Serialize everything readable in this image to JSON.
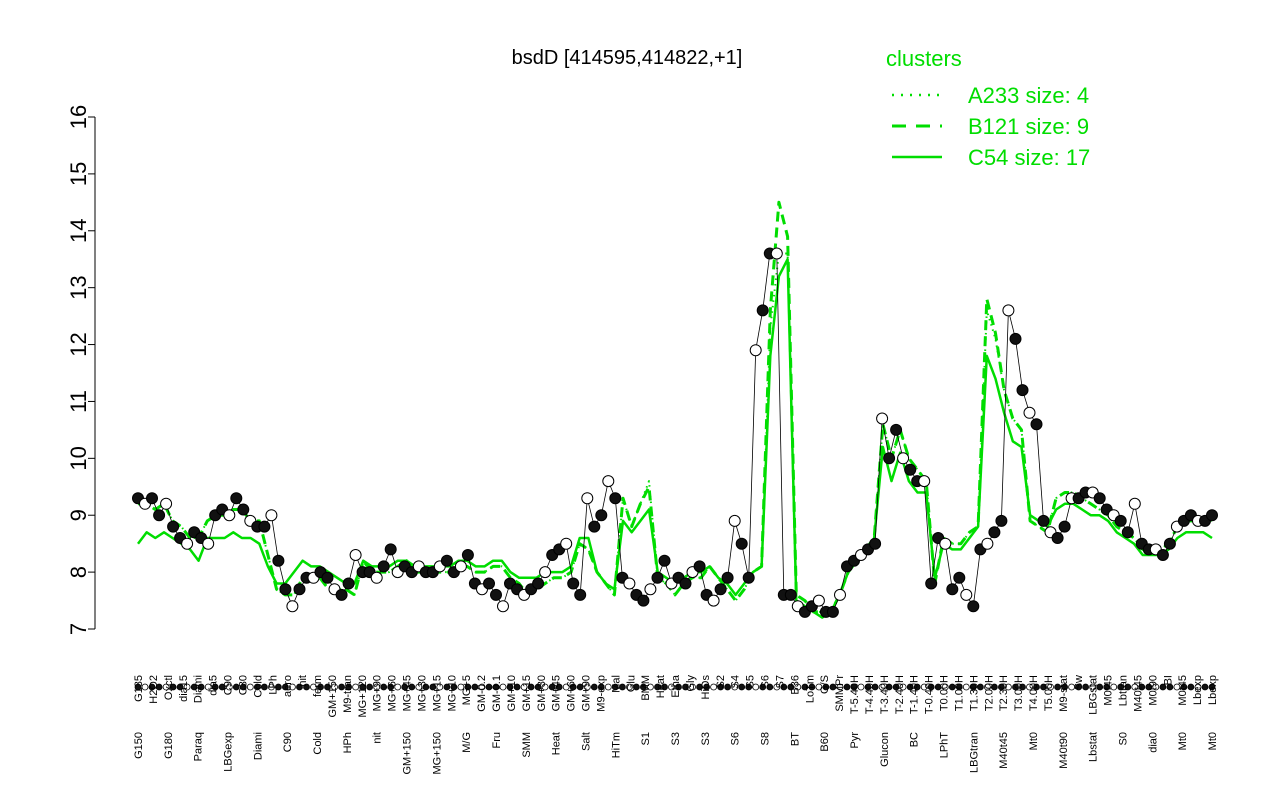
{
  "chart_data": {
    "type": "line",
    "title": "bsdD [414595,414822,+1]",
    "xlabel": "",
    "ylabel": "",
    "ylim": [
      7,
      16
    ],
    "yticks": [
      7,
      8,
      9,
      10,
      11,
      12,
      13,
      14,
      15,
      16
    ],
    "grid": false,
    "legend": {
      "title": "clusters",
      "placement": "top-right",
      "entries": [
        {
          "label": "A233 size: 4",
          "style": "dotted"
        },
        {
          "label": "B121 size: 9",
          "style": "dashed"
        },
        {
          "label": "C54 size: 17",
          "style": "solid"
        }
      ]
    },
    "colors": {
      "series": "#00dd00",
      "points_dark": "#111111",
      "points_light": "#ffffff",
      "axis": "#000000"
    },
    "x_labels_top": [
      "G135",
      "H2O2",
      "Oxctl",
      "dia15",
      "Diami",
      "dia5",
      "C90",
      "C30",
      "Cold",
      "LPh",
      "aero",
      "nit",
      "ferm",
      "GM+150",
      "M9-tran",
      "MG+120",
      "MG+90",
      "MG+60",
      "MG+45",
      "MG+30",
      "MG+15",
      "MG+10",
      "MG+5",
      "GM-0.2",
      "GM-0.1",
      "GM+10",
      "GM+15",
      "GM+30",
      "GM+45",
      "GM+60",
      "GM+90",
      "M9-exp",
      "Mal",
      "Glu",
      "BMM",
      "Heat",
      "Etha",
      "Gly",
      "HiOs",
      "S2",
      "S4",
      "S5",
      "S6",
      "S7",
      "B36",
      "LoTm",
      "G/S",
      "SMMPr",
      "T-5.40H",
      "T-4.40H",
      "T-3.40H",
      "T-2.40H",
      "T-1.40H",
      "T-0.40H",
      "T0.00H",
      "T1.00H",
      "T1.30H",
      "T2.00H",
      "T2.30H",
      "T3.00H",
      "T4.00H",
      "T5.00H",
      "M9-stat",
      "Sw",
      "LBGstat",
      "M0t45",
      "Lbtran",
      "M40t45",
      "M0t90",
      "BI",
      "M0t45",
      "Lbexp",
      "Lbexp"
    ],
    "x_labels_bottom": [
      "G150",
      "G180",
      "Paraq",
      "LBGexp",
      "Diami",
      "C90",
      "Cold",
      "HPh",
      "nit",
      "GM+150",
      "MG+150",
      "M/G",
      "Fru",
      "SMM",
      "Heat",
      "Salt",
      "HiTm",
      "S1",
      "S3",
      "S3",
      "S6",
      "S8",
      "BT",
      "B60",
      "Pyr",
      "Glucon",
      "BC",
      "LPhT",
      "LBGtran",
      "M40t45",
      "Mt0",
      "M40t90",
      "Lbstat",
      "S0",
      "dia0",
      "Mt0",
      "Mt0"
    ],
    "series": [
      {
        "name": "",
        "style": "dotted",
        "values": [
          9.2,
          9.2,
          9.1,
          9.2,
          8.9,
          8.8,
          8.6,
          8.6,
          8.9,
          9.0,
          9.0,
          9.1,
          9.1,
          8.9,
          8.9,
          8.3,
          7.7,
          7.6,
          7.6,
          7.9,
          7.9,
          7.9,
          7.7,
          7.7,
          7.7,
          7.6,
          8.2,
          8.0,
          8.0,
          8.0,
          8.1,
          8.2,
          8.0,
          8.0,
          8.0,
          8.0,
          8.0,
          8.1,
          8.1,
          8.0,
          8.0,
          8.1,
          8.1,
          7.9,
          7.8,
          7.6,
          7.7,
          7.8,
          7.9,
          7.9,
          8.0,
          8.5,
          8.4,
          8.0,
          7.8,
          7.6,
          9.3,
          8.8,
          9.2,
          9.6,
          7.9,
          7.8,
          7.6,
          7.8,
          7.9,
          7.9,
          8.1,
          7.9,
          7.7,
          7.5,
          7.7,
          8.0,
          8.1,
          12.3,
          13.6,
          13.6,
          7.6,
          7.5,
          7.3,
          7.3,
          7.3,
          7.6,
          8.0,
          8.2,
          8.4,
          8.6,
          10.6,
          10.0,
          10.5,
          10.0,
          9.8,
          9.6,
          7.8,
          8.6,
          8.5,
          8.5,
          8.7,
          8.8,
          12.6,
          12.1,
          11.2,
          10.7,
          10.5,
          8.9,
          8.8,
          8.7,
          9.3,
          9.4,
          9.4,
          9.3,
          9.2,
          9.1,
          9.0,
          8.8,
          8.7,
          8.6,
          8.4,
          8.4,
          8.4,
          8.5,
          8.8,
          8.9,
          8.9,
          8.9,
          8.9
        ]
      },
      {
        "name": "",
        "style": "dashed",
        "values": [
          9.2,
          9.2,
          9.1,
          9.2,
          8.9,
          8.8,
          8.6,
          8.6,
          8.9,
          9.0,
          9.0,
          9.1,
          9.1,
          8.9,
          8.9,
          8.3,
          7.7,
          7.6,
          7.6,
          7.9,
          7.9,
          7.9,
          7.7,
          7.7,
          7.7,
          7.6,
          8.2,
          8.0,
          8.0,
          8.0,
          8.1,
          8.2,
          8.0,
          8.0,
          8.0,
          8.0,
          8.0,
          8.1,
          8.1,
          8.0,
          8.0,
          8.1,
          8.1,
          7.9,
          7.8,
          7.6,
          7.7,
          7.8,
          7.9,
          7.9,
          8.0,
          8.5,
          8.4,
          8.0,
          7.8,
          7.6,
          9.3,
          8.8,
          9.2,
          9.5,
          7.9,
          7.8,
          7.6,
          7.8,
          7.9,
          7.9,
          8.1,
          7.9,
          7.7,
          7.5,
          7.7,
          8.0,
          8.1,
          12.6,
          14.5,
          13.9,
          7.6,
          7.5,
          7.3,
          7.3,
          7.3,
          7.6,
          8.0,
          8.2,
          8.4,
          8.6,
          10.6,
          10.0,
          10.5,
          10.0,
          9.8,
          9.6,
          7.8,
          8.6,
          8.5,
          8.5,
          8.7,
          8.8,
          12.8,
          12.2,
          11.2,
          10.7,
          10.5,
          8.9,
          8.8,
          8.7,
          9.3,
          9.4,
          9.4,
          9.3,
          9.2,
          9.1,
          9.0,
          8.8,
          8.7,
          8.6,
          8.4,
          8.4,
          8.4,
          8.5,
          8.8,
          8.9,
          8.9,
          8.9,
          8.9
        ]
      },
      {
        "name": "",
        "style": "solid",
        "values": [
          8.5,
          8.7,
          8.6,
          8.7,
          8.6,
          8.5,
          8.4,
          8.2,
          8.6,
          8.6,
          8.6,
          8.7,
          8.6,
          8.6,
          8.5,
          8.1,
          7.8,
          7.8,
          8.0,
          8.2,
          8.1,
          8.1,
          8.0,
          7.9,
          7.8,
          7.8,
          8.2,
          8.1,
          8.1,
          8.1,
          8.2,
          8.2,
          8.1,
          8.1,
          8.1,
          8.1,
          8.1,
          8.2,
          8.2,
          8.1,
          8.1,
          8.2,
          8.2,
          8.0,
          7.9,
          7.9,
          7.9,
          8.0,
          8.0,
          8.0,
          8.1,
          8.6,
          8.6,
          8.0,
          7.8,
          7.7,
          8.9,
          8.7,
          8.9,
          9.1,
          8.0,
          7.9,
          7.8,
          7.9,
          8.0,
          8.0,
          8.1,
          7.9,
          7.8,
          7.6,
          7.8,
          8.0,
          8.1,
          11.8,
          13.2,
          13.5,
          7.5,
          7.4,
          7.3,
          7.2,
          7.3,
          7.6,
          8.0,
          8.2,
          8.4,
          8.6,
          10.2,
          9.6,
          10.1,
          9.6,
          9.4,
          9.4,
          7.9,
          8.5,
          8.4,
          8.4,
          8.6,
          8.8,
          11.8,
          11.4,
          10.8,
          10.3,
          10.2,
          9.0,
          8.9,
          8.8,
          9.1,
          9.2,
          9.2,
          9.1,
          9.0,
          9.0,
          8.9,
          8.7,
          8.6,
          8.5,
          8.3,
          8.3,
          8.3,
          8.4,
          8.6,
          8.7,
          8.7,
          8.7,
          8.6
        ]
      }
    ],
    "points": [
      9.3,
      9.2,
      9.3,
      9.0,
      9.2,
      8.8,
      8.6,
      8.5,
      8.7,
      8.6,
      8.5,
      9.0,
      9.1,
      9.0,
      9.3,
      9.1,
      8.9,
      8.8,
      8.8,
      9.0,
      8.2,
      7.7,
      7.4,
      7.7,
      7.9,
      7.9,
      8.0,
      7.9,
      7.7,
      7.6,
      7.8,
      8.3,
      8.0,
      8.0,
      7.9,
      8.1,
      8.4,
      8.0,
      8.1,
      8.0,
      8.1,
      8.0,
      8.0,
      8.1,
      8.2,
      8.0,
      8.1,
      8.3,
      7.8,
      7.7,
      7.8,
      7.6,
      7.4,
      7.8,
      7.7,
      7.6,
      7.7,
      7.8,
      8.0,
      8.3,
      8.4,
      8.5,
      7.8,
      7.6,
      9.3,
      8.8,
      9.0,
      9.6,
      9.3,
      7.9,
      7.8,
      7.6,
      7.5,
      7.7,
      7.9,
      8.2,
      7.8,
      7.9,
      7.8,
      8.0,
      8.1,
      7.6,
      7.5,
      7.7,
      7.9,
      8.9,
      8.5,
      7.9,
      11.9,
      12.6,
      13.6,
      13.6,
      7.6,
      7.6,
      7.4,
      7.3,
      7.4,
      7.5,
      7.3,
      7.3,
      7.6,
      8.1,
      8.2,
      8.3,
      8.4,
      8.5,
      10.7,
      10.0,
      10.5,
      10.0,
      9.8,
      9.6,
      9.6,
      7.8,
      8.6,
      8.5,
      7.7,
      7.9,
      7.6,
      7.4,
      8.4,
      8.5,
      8.7,
      8.9,
      12.6,
      12.1,
      11.2,
      10.8,
      10.6,
      8.9,
      8.7,
      8.6,
      8.8,
      9.3,
      9.3,
      9.4,
      9.4,
      9.3,
      9.1,
      9.0,
      8.9,
      8.7,
      9.2,
      8.5,
      8.4,
      8.4,
      8.3,
      8.5,
      8.8,
      8.9,
      9.0,
      8.9,
      8.9,
      9.0
    ]
  }
}
